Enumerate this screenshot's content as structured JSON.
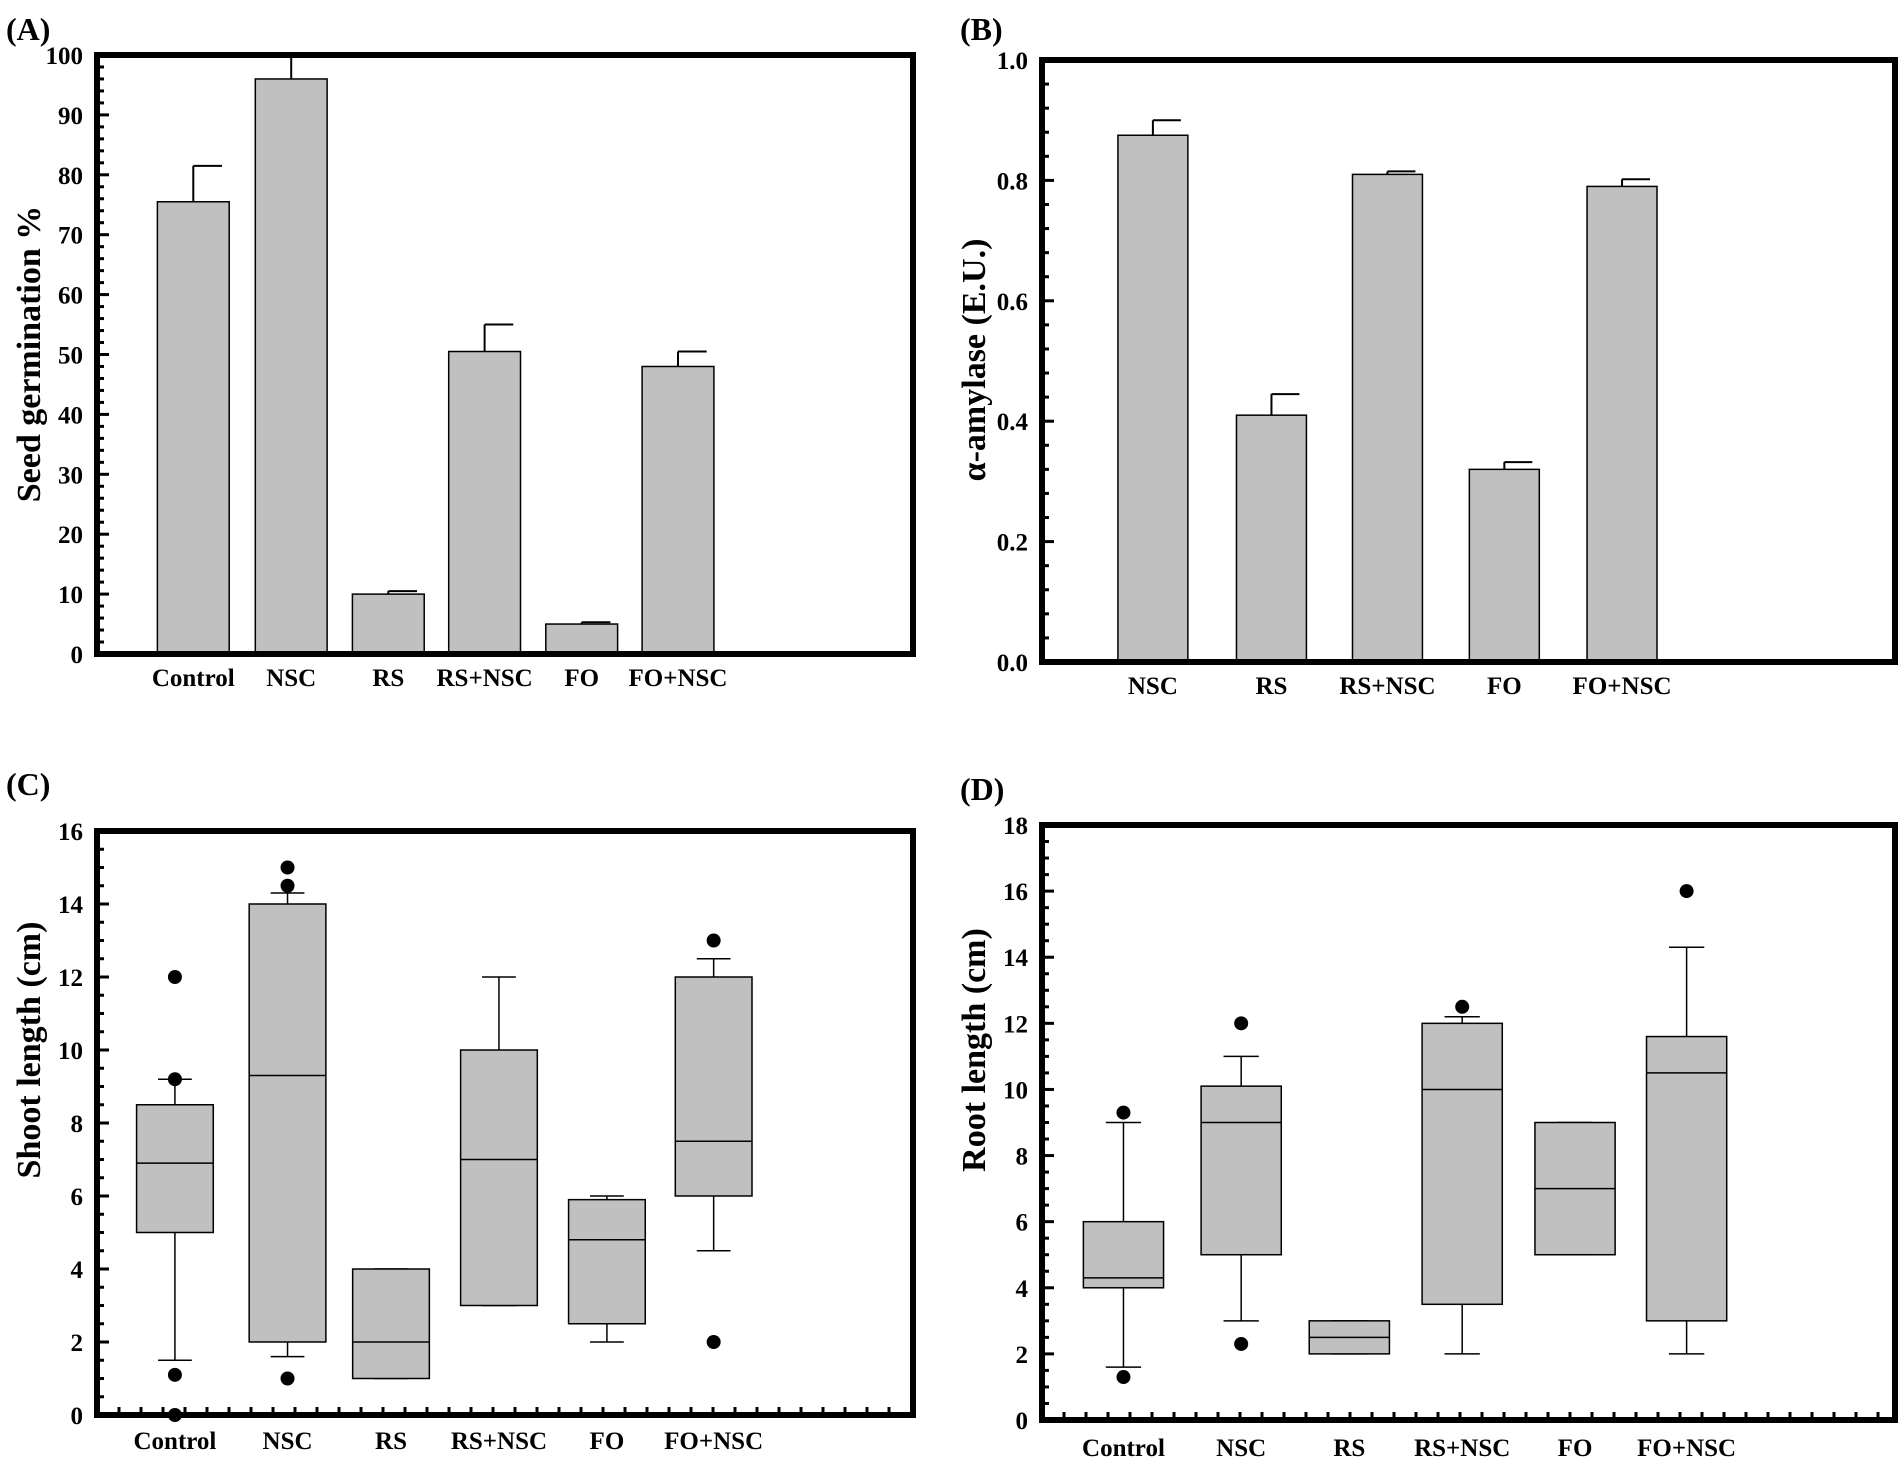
{
  "colors": {
    "bar_fill": "#c0c0c0",
    "frame": "#000000",
    "outlier": "#000000"
  },
  "chart_data": [
    {
      "panel": "(A)",
      "type": "bar",
      "ylabel": "Seed germination %",
      "xlabel": "",
      "ylim": [
        0,
        100
      ],
      "yticks": [
        "0",
        "10",
        "20",
        "30",
        "40",
        "50",
        "60",
        "70",
        "80",
        "90",
        "100"
      ],
      "categories": [
        "Control",
        "NSC",
        "RS",
        "RS+NSC",
        "FO",
        "FO+NSC"
      ],
      "values": [
        75.5,
        96,
        10,
        50.5,
        5,
        48
      ],
      "errors": [
        6,
        4,
        0.5,
        4.5,
        0.3,
        2.5
      ]
    },
    {
      "panel": "(B)",
      "type": "bar",
      "ylabel": "α-amylase (E.U.)",
      "xlabel": "",
      "ylim": [
        0,
        1.0
      ],
      "yticks": [
        "0.0",
        "0.2",
        "0.4",
        "0.6",
        "0.8",
        "1.0"
      ],
      "categories": [
        "NSC",
        "RS",
        "RS+NSC",
        "FO",
        "FO+NSC"
      ],
      "values": [
        0.875,
        0.41,
        0.81,
        0.32,
        0.79
      ],
      "errors": [
        0.025,
        0.035,
        0.005,
        0.012,
        0.012
      ]
    },
    {
      "panel": "(C)",
      "type": "box",
      "ylabel": "Shoot length (cm)",
      "xlabel": "",
      "ylim": [
        0,
        16
      ],
      "yticks": [
        "0",
        "2",
        "4",
        "6",
        "8",
        "10",
        "12",
        "14",
        "16"
      ],
      "categories": [
        "Control",
        "NSC",
        "RS",
        "RS+NSC",
        "FO",
        "FO+NSC"
      ],
      "boxes": [
        {
          "low": 1.5,
          "q1": 5,
          "median": 6.9,
          "q3": 8.5,
          "high": 9.2,
          "outliers": [
            12,
            9.2,
            1.1,
            0
          ]
        },
        {
          "low": 1.6,
          "q1": 2,
          "median": 9.3,
          "q3": 14,
          "high": 14.3,
          "outliers": [
            15,
            14.5,
            1
          ]
        },
        {
          "low": 1,
          "q1": 1,
          "median": 2,
          "q3": 4,
          "high": 4,
          "outliers": []
        },
        {
          "low": 3,
          "q1": 3,
          "median": 7,
          "q3": 10,
          "high": 12,
          "outliers": []
        },
        {
          "low": 2,
          "q1": 2.5,
          "median": 4.8,
          "q3": 5.9,
          "high": 6,
          "outliers": []
        },
        {
          "low": 4.5,
          "q1": 6,
          "median": 7.5,
          "q3": 12,
          "high": 12.5,
          "outliers": [
            13,
            2
          ]
        }
      ]
    },
    {
      "panel": "(D)",
      "type": "box",
      "ylabel": "Root length (cm)",
      "xlabel": "",
      "ylim": [
        0,
        18
      ],
      "yticks": [
        "0",
        "2",
        "4",
        "6",
        "8",
        "10",
        "12",
        "14",
        "16",
        "18"
      ],
      "categories": [
        "Control",
        "NSC",
        "RS",
        "RS+NSC",
        "FO",
        "FO+NSC"
      ],
      "boxes": [
        {
          "low": 1.6,
          "q1": 4,
          "median": 4.3,
          "q3": 6,
          "high": 9,
          "outliers": [
            9.3,
            1.3
          ]
        },
        {
          "low": 3,
          "q1": 5,
          "median": 9,
          "q3": 10.1,
          "high": 11,
          "outliers": [
            12,
            2.3
          ]
        },
        {
          "low": 2,
          "q1": 2,
          "median": 2.5,
          "q3": 3,
          "high": 3,
          "outliers": []
        },
        {
          "low": 2,
          "q1": 3.5,
          "median": 10,
          "q3": 12,
          "high": 12.2,
          "outliers": [
            12.5
          ]
        },
        {
          "low": 5,
          "q1": 5,
          "median": 7,
          "q3": 9,
          "high": 9,
          "outliers": []
        },
        {
          "low": 2,
          "q1": 3,
          "median": 10.5,
          "q3": 11.6,
          "high": 14.3,
          "outliers": [
            16
          ]
        }
      ]
    }
  ]
}
